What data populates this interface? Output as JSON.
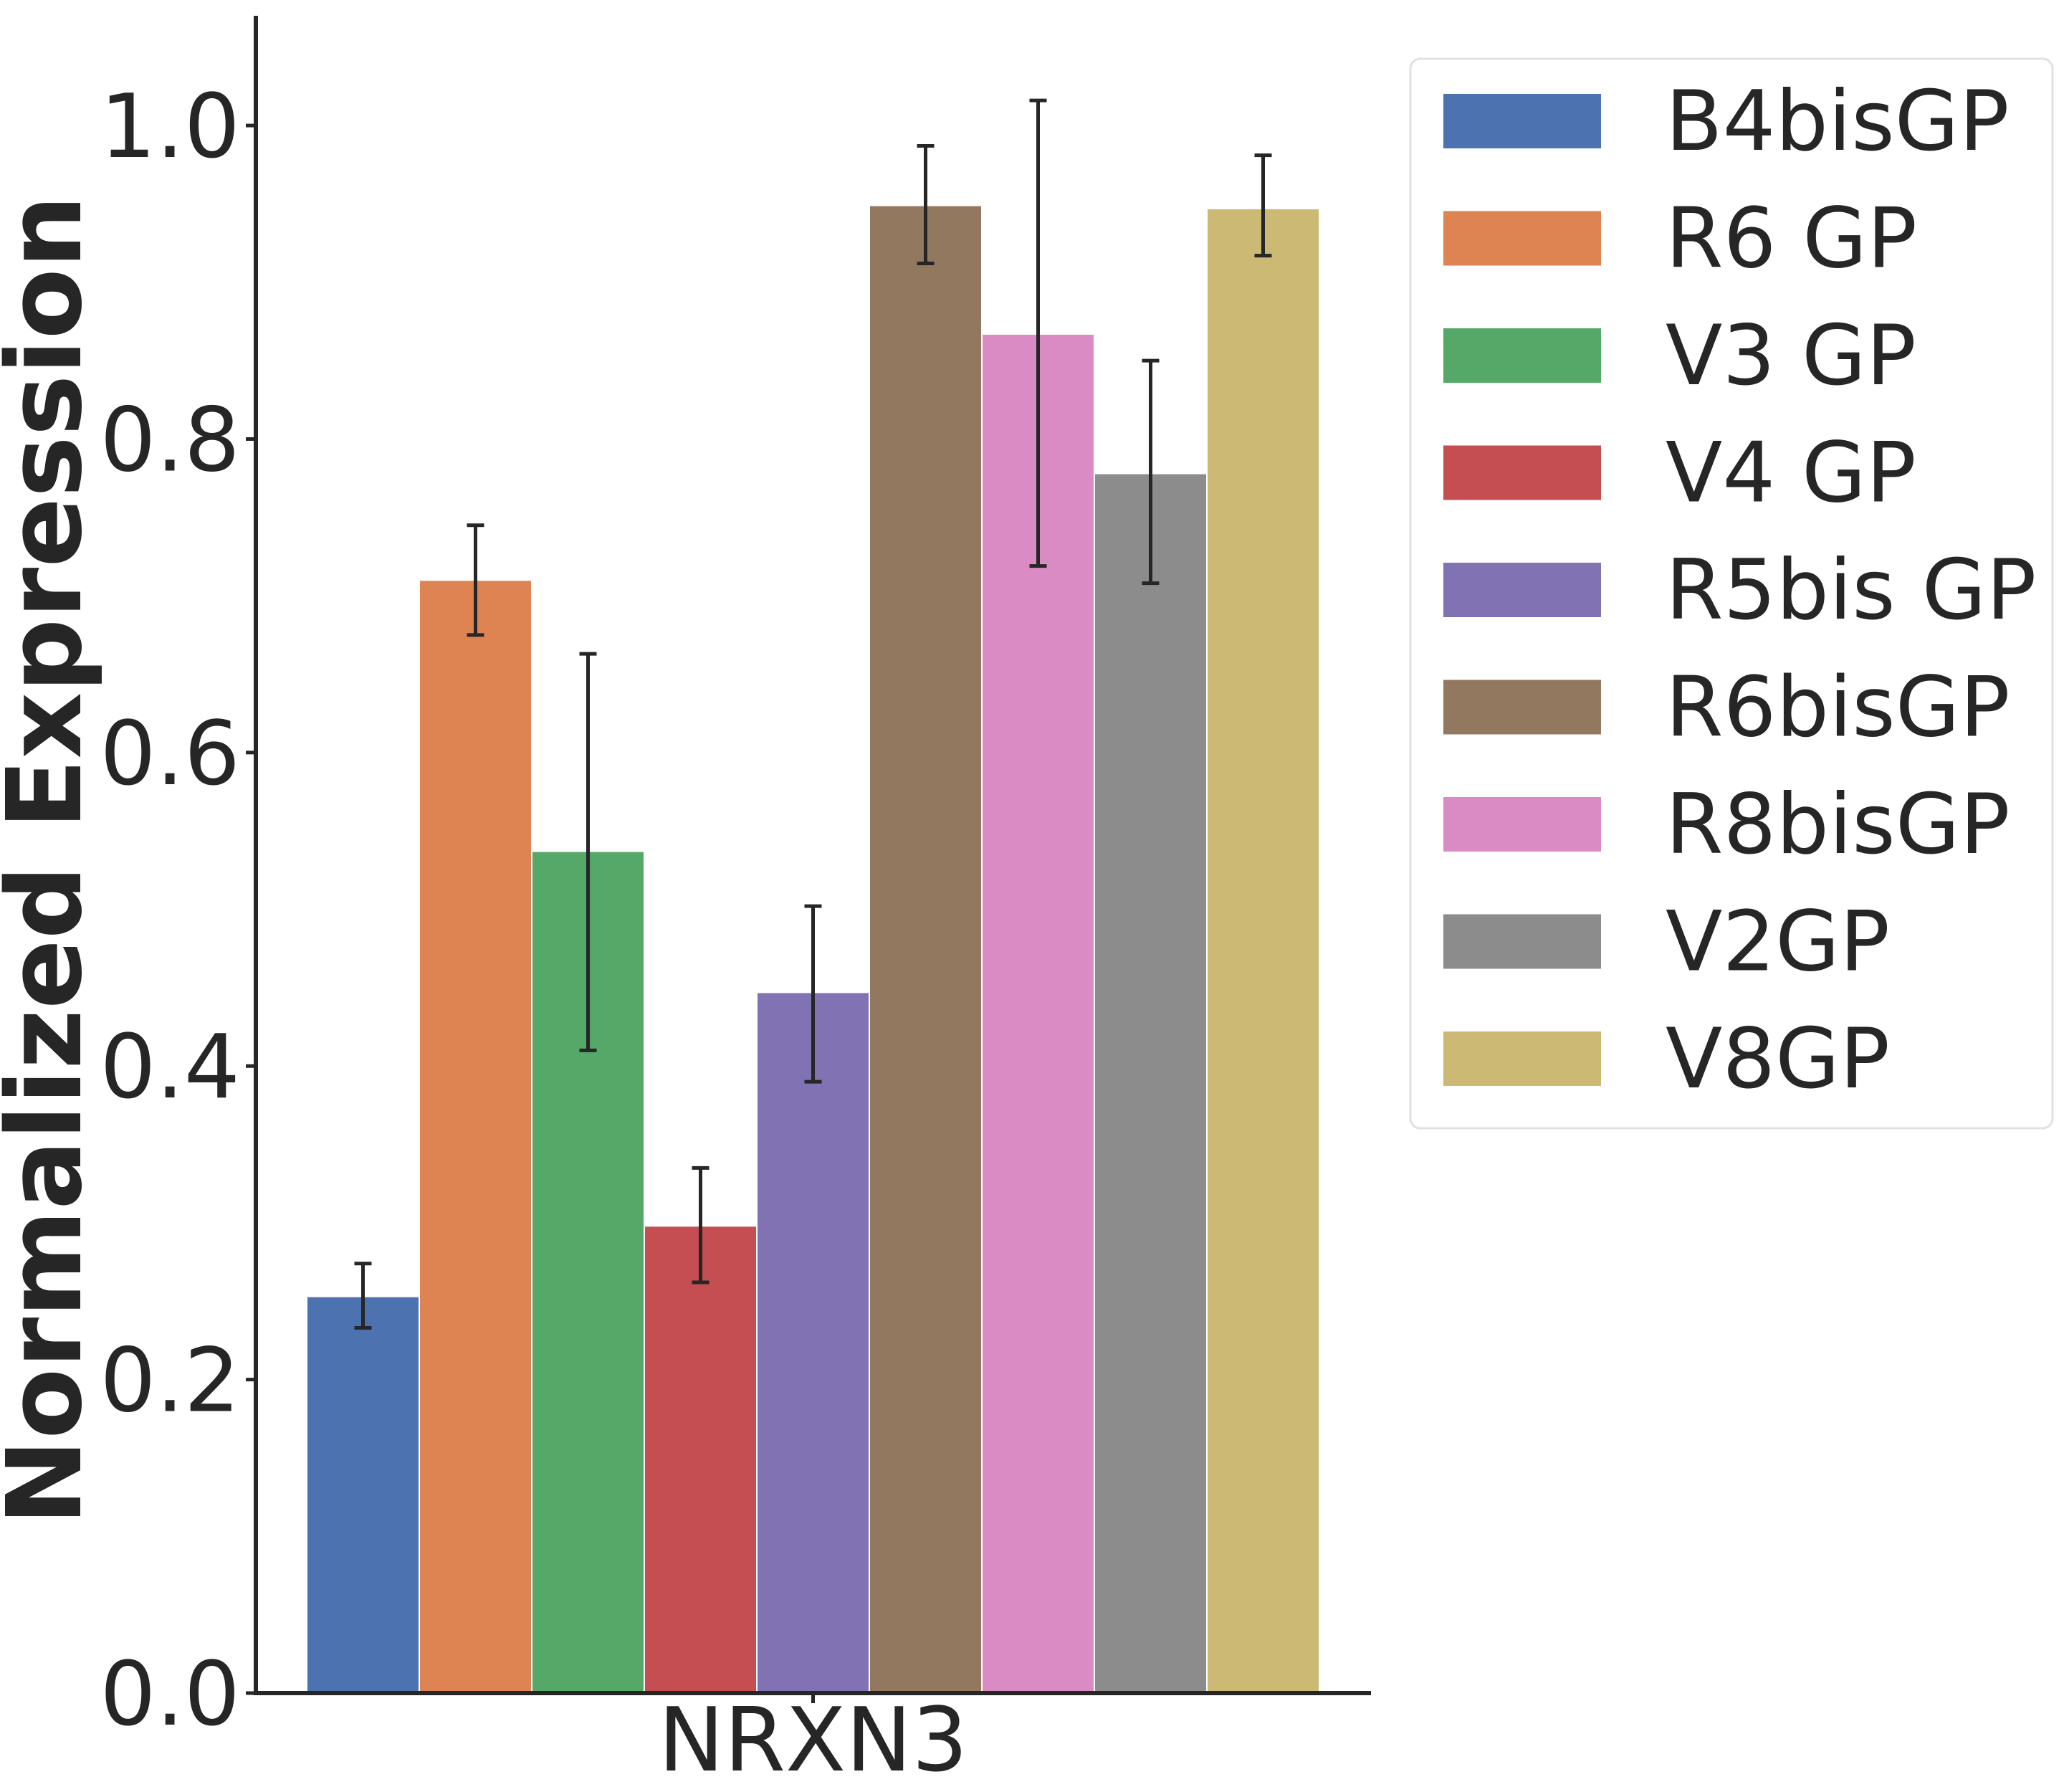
{
  "chart_data": {
    "type": "bar",
    "title": "",
    "xlabel": "",
    "ylabel": "Normalized Expression",
    "categories": [
      "NRXN3"
    ],
    "ylim": [
      0,
      1.07
    ],
    "yticks": [
      0.0,
      0.2,
      0.4,
      0.6,
      0.8,
      1.0
    ],
    "ytick_labels": [
      "0.0",
      "0.2",
      "0.4",
      "0.6",
      "0.8",
      "1.0"
    ],
    "grid": false,
    "legend_position": "top-right, outside plot",
    "series": [
      {
        "name": "B4bisGP",
        "values": [
          0.253
        ],
        "err_low": [
          0.233
        ],
        "err_high": [
          0.274
        ],
        "color": "#4c72b0"
      },
      {
        "name": "R6 GP",
        "values": [
          0.71
        ],
        "err_low": [
          0.675
        ],
        "err_high": [
          0.745
        ],
        "color": "#dd8452"
      },
      {
        "name": "V3 GP",
        "values": [
          0.537
        ],
        "err_low": [
          0.41
        ],
        "err_high": [
          0.663
        ],
        "color": "#55a868"
      },
      {
        "name": "V4 GP",
        "values": [
          0.298
        ],
        "err_low": [
          0.262
        ],
        "err_high": [
          0.335
        ],
        "color": "#c44e52"
      },
      {
        "name": "R5bis GP",
        "values": [
          0.447
        ],
        "err_low": [
          0.39
        ],
        "err_high": [
          0.502
        ],
        "color": "#8172b3"
      },
      {
        "name": "R6bisGP",
        "values": [
          0.949
        ],
        "err_low": [
          0.912
        ],
        "err_high": [
          0.987
        ],
        "color": "#937860"
      },
      {
        "name": "R8bisGP",
        "values": [
          0.867
        ],
        "err_low": [
          0.719
        ],
        "err_high": [
          1.016
        ],
        "color": "#da8bc3"
      },
      {
        "name": "V2GP",
        "values": [
          0.778
        ],
        "err_low": [
          0.708
        ],
        "err_high": [
          0.85
        ],
        "color": "#8c8c8c"
      },
      {
        "name": "V8GP",
        "values": [
          0.947
        ],
        "err_low": [
          0.917
        ],
        "err_high": [
          0.981
        ],
        "color": "#ccb974"
      }
    ]
  }
}
